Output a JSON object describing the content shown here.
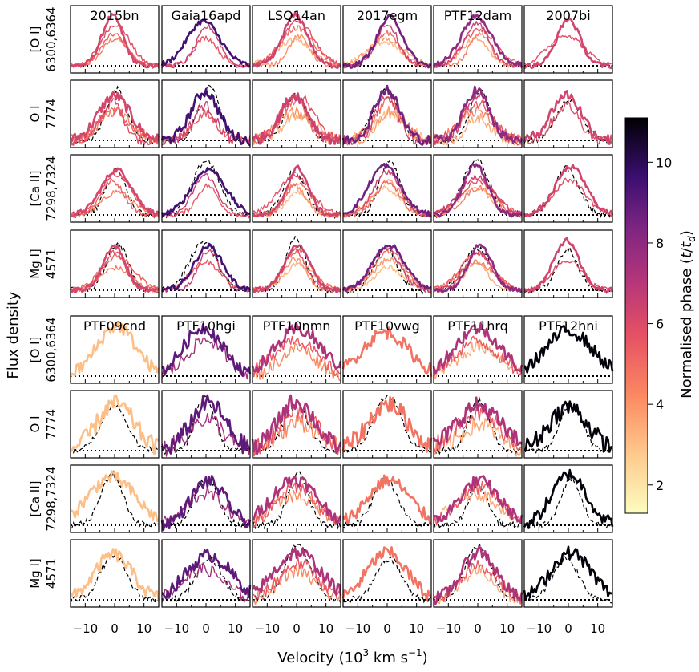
{
  "chart_data": {
    "type": "line",
    "title": "",
    "xlabel": "Velocity (10",
    "xlabel_exponent_1": "3",
    "xlabel_mid": " km s",
    "xlabel_exponent_2": "−1",
    "xlabel_close": ")",
    "ylabel": "Flux density",
    "xlim": [
      -15,
      15
    ],
    "x_ticks": [
      -10,
      0,
      10
    ],
    "x_tick_labels": [
      "−10",
      "0",
      "10"
    ],
    "colorbar": {
      "label_prefix": "Normalised phase (",
      "label_t": "t",
      "label_slash": "/",
      "label_td": "t",
      "label_sub": "d",
      "label_suffix": ")",
      "range": [
        1.3,
        11.1
      ],
      "ticks": [
        2,
        4,
        6,
        8,
        10
      ],
      "tick_labels": [
        "2",
        "4",
        "6",
        "8",
        "10"
      ],
      "colormap": "magma_r"
    },
    "line_rows": [
      [
        "[O I]",
        "6300,6364"
      ],
      [
        "O I",
        "7774"
      ],
      [
        "[Ca II]",
        "7298,7324"
      ],
      [
        "Mg I]",
        "4571"
      ]
    ],
    "groups": [
      {
        "objects": [
          {
            "name": "2015bn",
            "phases": [
              4.5,
              5.2,
              5.8,
              6.2
            ]
          },
          {
            "name": "Gaia16apd",
            "phases": [
              5.5,
              6.5,
              9.5
            ]
          },
          {
            "name": "LSQ14an",
            "phases": [
              3.2,
              4.0,
              5.0,
              5.8,
              6.4
            ]
          },
          {
            "name": "2017egm",
            "phases": [
              3.0,
              3.8,
              5.0,
              6.4,
              8.6
            ]
          },
          {
            "name": "PTF12dam",
            "phases": [
              3.5,
              4.5,
              5.5,
              6.5,
              8.0
            ]
          },
          {
            "name": "2007bi",
            "phases": [
              5.9,
              6.3
            ]
          }
        ]
      },
      {
        "objects": [
          {
            "name": "PTF09cnd",
            "phases": [
              3.0
            ]
          },
          {
            "name": "PTF10hgi",
            "phases": [
              7.5,
              9.0
            ]
          },
          {
            "name": "PTF10nmn",
            "phases": [
              4.2,
              5.6,
              7.2
            ]
          },
          {
            "name": "PTF10vwg",
            "phases": [
              4.8
            ]
          },
          {
            "name": "PTF11hrq",
            "phases": [
              3.5,
              5.5,
              7.2
            ]
          },
          {
            "name": "PTF12hni",
            "phases": [
              11.0
            ]
          }
        ]
      }
    ],
    "comparison_line": "dashed black reference profile",
    "baseline": "dotted black zero-flux level"
  }
}
